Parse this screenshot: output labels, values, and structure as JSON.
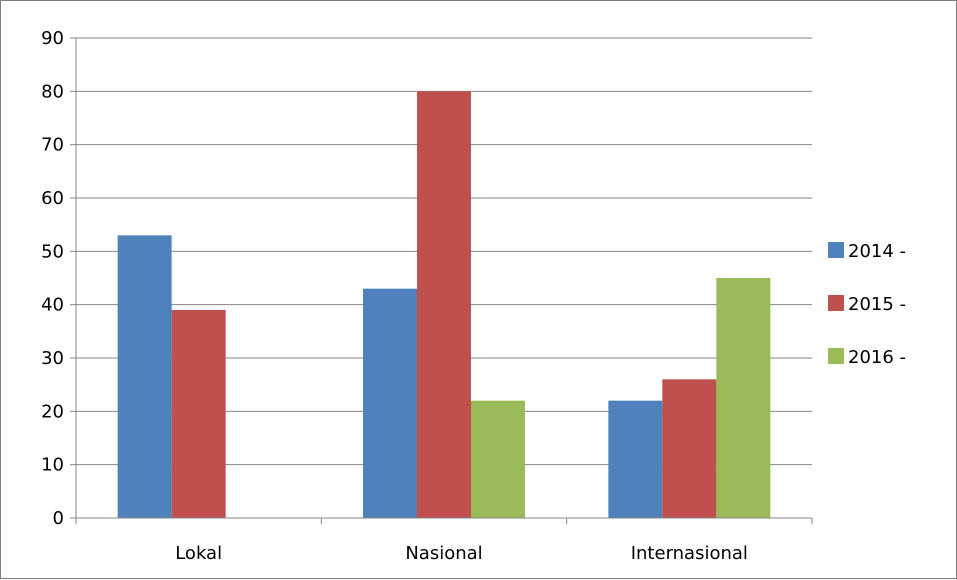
{
  "chart_data": {
    "type": "bar",
    "categories": [
      "Lokal",
      "Nasional",
      "Internasional"
    ],
    "series": [
      {
        "name": "2014 -",
        "values": [
          53,
          43,
          22
        ],
        "color": "#4f81bd"
      },
      {
        "name": "2015 -",
        "values": [
          39,
          80,
          26
        ],
        "color": "#c0504d"
      },
      {
        "name": "2016 -",
        "values": [
          0,
          22,
          45
        ],
        "color": "#9bbb59"
      }
    ],
    "ylim": [
      0,
      90
    ],
    "yticks": [
      "0",
      "10",
      "20",
      "30",
      "40",
      "50",
      "60",
      "70",
      "80",
      "90"
    ],
    "grid": true,
    "legend_position": "right",
    "gridline_color": "#868686"
  }
}
